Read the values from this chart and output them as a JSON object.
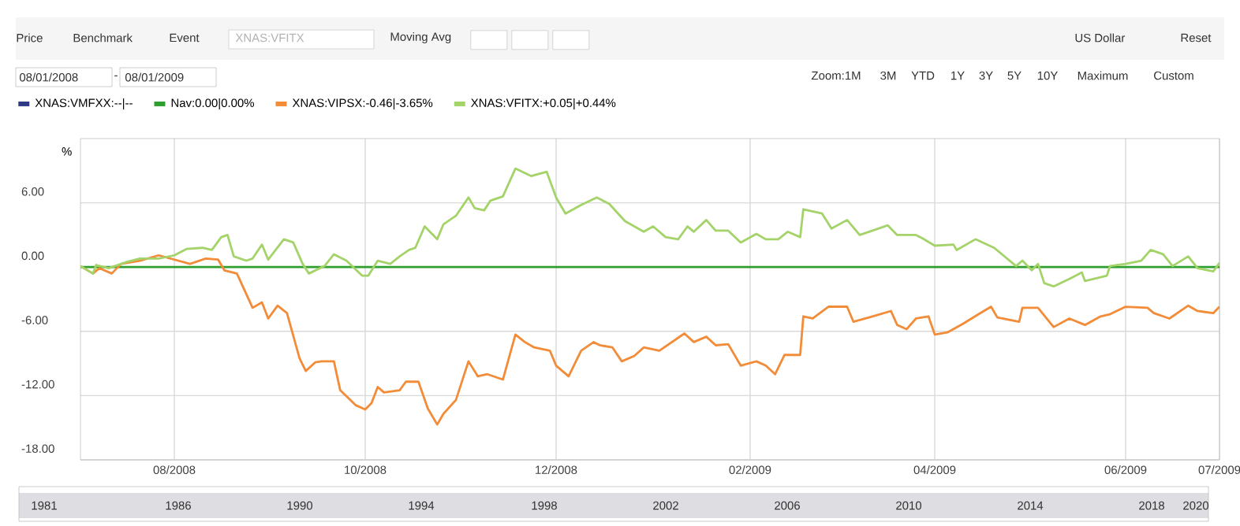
{
  "chart_data": {
    "type": "line",
    "ylabel": "%",
    "xlim": [
      "2008-07-02",
      "2009-07-01"
    ],
    "xticks": [
      {
        "value": "2008-08-01",
        "label": "08/2008"
      },
      {
        "value": "2008-10-01",
        "label": "10/2008"
      },
      {
        "value": "2008-12-01",
        "label": "12/2008"
      },
      {
        "value": "2009-02-01",
        "label": "02/2009"
      },
      {
        "value": "2009-04-01",
        "label": "04/2009"
      },
      {
        "value": "2009-06-01",
        "label": "06/2009"
      },
      {
        "value": "2009-07-01",
        "label": "07/2009"
      }
    ],
    "ylim": [
      -18,
      12
    ],
    "yticks": [
      {
        "value": -18,
        "label": "-18.00"
      },
      {
        "value": -12,
        "label": "-12.00"
      },
      {
        "value": -6,
        "label": "-6.00"
      },
      {
        "value": 0,
        "label": "0.00"
      },
      {
        "value": 6,
        "label": "6.00"
      }
    ],
    "grid": true,
    "legend": "top",
    "line_style": "solid",
    "marker": "none",
    "series": [
      {
        "name": "XNAS:VMFXX:--|--",
        "color": "#2e3a87"
      },
      {
        "name": "Nav:0.00|0.00%",
        "color": "#2e9e2e",
        "x": [
          "2008-07-02",
          "2009-07-01"
        ],
        "values": [
          0,
          0
        ]
      },
      {
        "name": "XNAS:VIPSX:-0.46|-3.65%",
        "color": "#f28c38",
        "x": [
          "2008-07-02",
          "2008-07-06",
          "2008-07-08",
          "2008-07-12",
          "2008-07-15",
          "2008-07-21",
          "2008-07-27",
          "2008-08-01",
          "2008-08-06",
          "2008-08-11",
          "2008-08-15",
          "2008-08-17",
          "2008-08-21",
          "2008-08-26",
          "2008-08-29",
          "2008-08-31",
          "2008-09-03",
          "2008-09-06",
          "2008-09-10",
          "2008-09-12",
          "2008-09-15",
          "2008-09-17",
          "2008-09-21",
          "2008-09-23",
          "2008-09-28",
          "2008-10-01",
          "2008-10-03",
          "2008-10-05",
          "2008-10-07",
          "2008-10-12",
          "2008-10-14",
          "2008-10-18",
          "2008-10-21",
          "2008-10-24",
          "2008-10-26",
          "2008-10-30",
          "2008-11-03",
          "2008-11-06",
          "2008-11-09",
          "2008-11-14",
          "2008-11-18",
          "2008-11-21",
          "2008-11-24",
          "2008-11-29",
          "2008-12-01",
          "2008-12-05",
          "2008-12-09",
          "2008-12-13",
          "2008-12-15",
          "2008-12-19",
          "2008-12-22",
          "2008-12-26",
          "2008-12-29",
          "2009-01-03",
          "2009-01-11",
          "2009-01-14",
          "2009-01-18",
          "2009-01-21",
          "2009-01-25",
          "2009-01-29",
          "2009-02-03",
          "2009-02-06",
          "2009-02-09",
          "2009-02-12",
          "2009-02-17",
          "2009-02-18",
          "2009-02-21",
          "2009-02-26",
          "2009-03-04",
          "2009-03-06",
          "2009-03-11",
          "2009-03-18",
          "2009-03-20",
          "2009-03-23",
          "2009-03-26",
          "2009-03-30",
          "2009-04-01",
          "2009-04-05",
          "2009-04-10",
          "2009-04-15",
          "2009-04-19",
          "2009-04-21",
          "2009-04-28",
          "2009-04-29",
          "2009-05-04",
          "2009-05-09",
          "2009-05-14",
          "2009-05-19",
          "2009-05-24",
          "2009-05-27",
          "2009-06-01",
          "2009-06-08",
          "2009-06-10",
          "2009-06-15",
          "2009-06-21",
          "2009-06-24",
          "2009-06-29",
          "2009-07-01"
        ],
        "values": [
          0.1,
          -0.6,
          -0.1,
          -0.6,
          0.3,
          0.6,
          1.1,
          0.7,
          0.3,
          0.8,
          0.7,
          -0.3,
          -0.6,
          -3.8,
          -3.3,
          -4.8,
          -3.6,
          -4.3,
          -8.5,
          -9.7,
          -8.9,
          -8.8,
          -8.8,
          -11.5,
          -12.9,
          -13.3,
          -12.7,
          -11.2,
          -11.7,
          -11.5,
          -10.7,
          -10.7,
          -13.2,
          -14.7,
          -13.7,
          -12.4,
          -8.8,
          -10.2,
          -10.0,
          -10.5,
          -6.3,
          -7.0,
          -7.5,
          -7.8,
          -9.2,
          -10.2,
          -7.8,
          -7.0,
          -7.3,
          -7.5,
          -8.8,
          -8.3,
          -7.5,
          -7.8,
          -6.2,
          -7.0,
          -6.5,
          -7.3,
          -7.2,
          -9.2,
          -8.8,
          -9.2,
          -10.0,
          -8.2,
          -8.2,
          -4.6,
          -4.8,
          -3.7,
          -3.7,
          -5.1,
          -4.7,
          -4.1,
          -5.4,
          -5.8,
          -4.8,
          -4.6,
          -6.3,
          -6.1,
          -5.3,
          -4.4,
          -3.7,
          -4.7,
          -5.1,
          -3.8,
          -3.8,
          -5.6,
          -4.8,
          -5.4,
          -4.6,
          -4.4,
          -3.7,
          -3.8,
          -4.3,
          -4.8,
          -3.6,
          -4.1,
          -4.3,
          -3.7
        ]
      },
      {
        "name": "XNAS:VFITX:+0.05|+0.44%",
        "color": "#a4d36a",
        "x": [
          "2008-07-02",
          "2008-07-06",
          "2008-07-07",
          "2008-07-11",
          "2008-07-17",
          "2008-07-21",
          "2008-07-27",
          "2008-08-01",
          "2008-08-05",
          "2008-08-10",
          "2008-08-13",
          "2008-08-16",
          "2008-08-18",
          "2008-08-20",
          "2008-08-24",
          "2008-08-26",
          "2008-08-29",
          "2008-08-31",
          "2008-09-05",
          "2008-09-08",
          "2008-09-11",
          "2008-09-13",
          "2008-09-18",
          "2008-09-21",
          "2008-09-25",
          "2008-09-30",
          "2008-10-02",
          "2008-10-05",
          "2008-10-09",
          "2008-10-12",
          "2008-10-15",
          "2008-10-17",
          "2008-10-20",
          "2008-10-24",
          "2008-10-26",
          "2008-10-30",
          "2008-11-03",
          "2008-11-05",
          "2008-11-08",
          "2008-11-10",
          "2008-11-14",
          "2008-11-18",
          "2008-11-23",
          "2008-11-28",
          "2008-12-01",
          "2008-12-04",
          "2008-12-09",
          "2008-12-14",
          "2008-12-18",
          "2008-12-23",
          "2008-12-29",
          "2009-01-01",
          "2009-01-05",
          "2009-01-09",
          "2009-01-12",
          "2009-01-14",
          "2009-01-18",
          "2009-01-21",
          "2009-01-25",
          "2009-01-29",
          "2009-02-03",
          "2009-02-06",
          "2009-02-10",
          "2009-02-13",
          "2009-02-17",
          "2009-02-18",
          "2009-02-24",
          "2009-02-27",
          "2009-03-04",
          "2009-03-08",
          "2009-03-11",
          "2009-03-17",
          "2009-03-20",
          "2009-03-26",
          "2009-03-28",
          "2009-04-01",
          "2009-04-07",
          "2009-04-08",
          "2009-04-14",
          "2009-04-20",
          "2009-04-27",
          "2009-04-29",
          "2009-05-02",
          "2009-05-04",
          "2009-05-06",
          "2009-05-09",
          "2009-05-14",
          "2009-05-18",
          "2009-05-19",
          "2009-05-26",
          "2009-05-27",
          "2009-06-01",
          "2009-06-06",
          "2009-06-09",
          "2009-06-13",
          "2009-06-16",
          "2009-06-21",
          "2009-06-24",
          "2009-06-29",
          "2009-07-01"
        ],
        "values": [
          0.1,
          -0.6,
          0.2,
          -0.1,
          0.5,
          0.8,
          0.8,
          1.1,
          1.7,
          1.8,
          1.6,
          2.8,
          3.0,
          1.0,
          0.6,
          0.8,
          2.1,
          0.7,
          2.6,
          2.3,
          0.3,
          -0.6,
          0.1,
          1.2,
          0.6,
          -0.8,
          -0.8,
          0.6,
          0.3,
          1.0,
          1.6,
          1.8,
          3.8,
          2.6,
          4.0,
          4.8,
          6.5,
          5.5,
          5.3,
          6.2,
          6.6,
          9.2,
          8.5,
          8.9,
          6.5,
          5.0,
          5.8,
          6.5,
          5.9,
          4.3,
          3.3,
          3.8,
          2.8,
          2.6,
          3.8,
          3.3,
          4.4,
          3.4,
          3.4,
          2.3,
          3.1,
          2.6,
          2.6,
          3.3,
          2.8,
          5.4,
          5.0,
          3.6,
          4.4,
          3.0,
          3.3,
          3.9,
          3.0,
          3.0,
          2.7,
          2.0,
          2.1,
          1.6,
          2.6,
          1.8,
          0.1,
          0.6,
          -0.3,
          0.3,
          -1.5,
          -1.8,
          -1.1,
          -0.5,
          -1.3,
          -0.8,
          0.1,
          0.3,
          0.6,
          1.6,
          1.2,
          0.1,
          1.0,
          -0.1,
          -0.4,
          0.4
        ]
      }
    ],
    "annotations": [
      "Price",
      "Benchmark",
      "Event",
      "XNAS:VFITX",
      "Moving Avg",
      "US Dollar",
      "Reset",
      "08/01/2008",
      "-",
      "08/01/2009",
      "Zoom:1M",
      "3M",
      "YTD",
      "1Y",
      "3Y",
      "5Y",
      "10Y",
      "Maximum",
      "Custom",
      "1981",
      "1986",
      "1990",
      "1994",
      "1998",
      "2002",
      "2006",
      "2010",
      "2014",
      "2018",
      "2020"
    ]
  }
}
